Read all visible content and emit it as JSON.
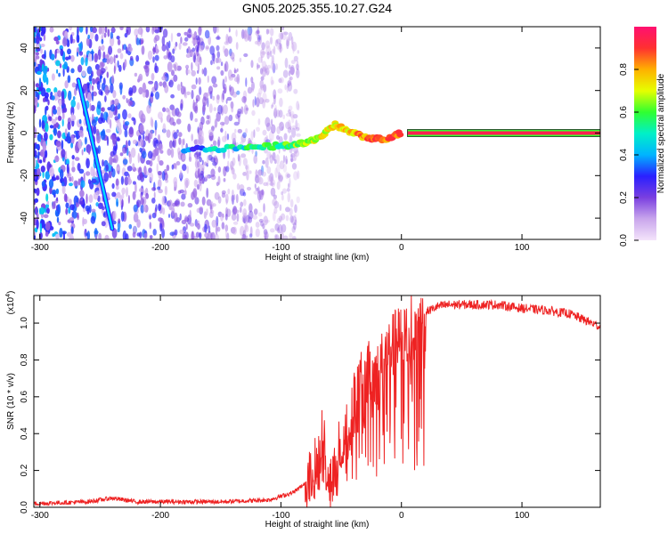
{
  "title": "GN05.2025.355.10.27.G24",
  "chart_data": [
    {
      "type": "heatmap",
      "title": "GN05.2025.355.10.27.G24",
      "xlabel": "Height of straight line (km)",
      "ylabel": "Frequency (Hz)",
      "xlim": [
        -305,
        165
      ],
      "ylim": [
        -50,
        50
      ],
      "xticks": [
        -300,
        -200,
        -100,
        0,
        100
      ],
      "yticks": [
        -40,
        -20,
        0,
        20,
        40
      ],
      "grid": false,
      "colorbar": {
        "label": "Normalized spectral amplitude",
        "range": [
          0,
          1
        ],
        "ticks": [
          0.0,
          0.2,
          0.4,
          0.6,
          0.8
        ],
        "colormap": [
          "#f4e4fb",
          "#c9a6ec",
          "#7a3fe0",
          "#2a20ff",
          "#00b4ff",
          "#00f0c8",
          "#30ff30",
          "#e6ff00",
          "#ffb000",
          "#ff3030",
          "#ff1070"
        ]
      },
      "features": {
        "noise_region_km": [
          -305,
          -85
        ],
        "chirp_line": {
          "x": [
            -268,
            -240
          ],
          "y_hz": [
            25,
            -45
          ]
        },
        "carrier_line": {
          "x": [
            5,
            165
          ],
          "y_hz": 0
        },
        "wander_track": {
          "x": [
            -180,
            -130,
            -100,
            -80,
            -65,
            -55,
            -45,
            -30,
            -15,
            0
          ],
          "y_hz": [
            -8,
            -7,
            -6,
            -5,
            -1,
            4,
            1,
            -2,
            -3,
            0
          ]
        }
      }
    },
    {
      "type": "line",
      "xlabel": "Height of straight line (km)",
      "ylabel": "SNR (10 * v/v)",
      "yscale_label": "(x10",
      "yscale_exp": "4",
      "xlim": [
        -305,
        165
      ],
      "ylim": [
        0,
        1.15
      ],
      "xticks": [
        -300,
        -200,
        -100,
        0,
        100
      ],
      "yticks": [
        0.0,
        0.2,
        0.4,
        0.6,
        0.8,
        1.0
      ],
      "grid": false,
      "series": [
        {
          "color": "#ee2222",
          "x": [
            -305,
            -260,
            -240,
            -220,
            -150,
            -110,
            -90,
            -75,
            -70,
            -65,
            -60,
            -55,
            -50,
            -45,
            -40,
            -35,
            -30,
            -25,
            -20,
            -15,
            -10,
            -5,
            0,
            10,
            20,
            30,
            40,
            60,
            80,
            100,
            120,
            140,
            165
          ],
          "values": [
            0.02,
            0.03,
            0.05,
            0.03,
            0.03,
            0.04,
            0.08,
            0.15,
            0.25,
            0.4,
            0.1,
            0.2,
            0.35,
            0.45,
            0.55,
            0.65,
            0.7,
            0.75,
            0.72,
            0.8,
            0.85,
            0.9,
            0.92,
            1.0,
            1.06,
            1.09,
            1.1,
            1.1,
            1.1,
            1.08,
            1.07,
            1.05,
            0.98
          ]
        }
      ]
    }
  ]
}
